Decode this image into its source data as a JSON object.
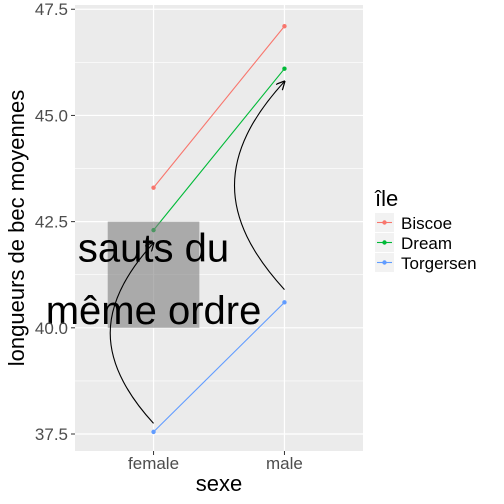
{
  "chart_data": {
    "type": "line",
    "title": "",
    "xlabel": "sexe",
    "ylabel": "longueurs de bec moyennes",
    "categories": [
      "female",
      "male"
    ],
    "ylim": [
      37.1,
      47.6
    ],
    "y_ticks": [
      37.5,
      40.0,
      42.5,
      45.0,
      47.5
    ],
    "y_tick_labels": [
      "37.5",
      "40.0",
      "42.5",
      "45.0",
      "47.5"
    ],
    "grid": true,
    "legend": {
      "title": "île",
      "placement": "right"
    },
    "series": [
      {
        "name": "Biscoe",
        "values": [
          43.3,
          47.1
        ],
        "color": "#F8766D"
      },
      {
        "name": "Dream",
        "values": [
          42.3,
          46.1
        ],
        "color": "#00BA38"
      },
      {
        "name": "Torgersen",
        "values": [
          37.55,
          40.6
        ],
        "color": "#619CFF"
      }
    ],
    "annotations": {
      "text_lines": [
        "sauts du",
        "même ordre"
      ],
      "rect": {
        "x_range": [
          0.65,
          1.35
        ],
        "y_range": [
          40.0,
          42.5
        ],
        "color": "#7f7f7f",
        "alpha": 0.6
      },
      "arrows": [
        {
          "from": [
            1.0,
            37.75
          ],
          "to": [
            1.0,
            42.0
          ]
        },
        {
          "from": [
            2.0,
            40.9
          ],
          "to": [
            2.0,
            45.8
          ]
        }
      ]
    }
  }
}
